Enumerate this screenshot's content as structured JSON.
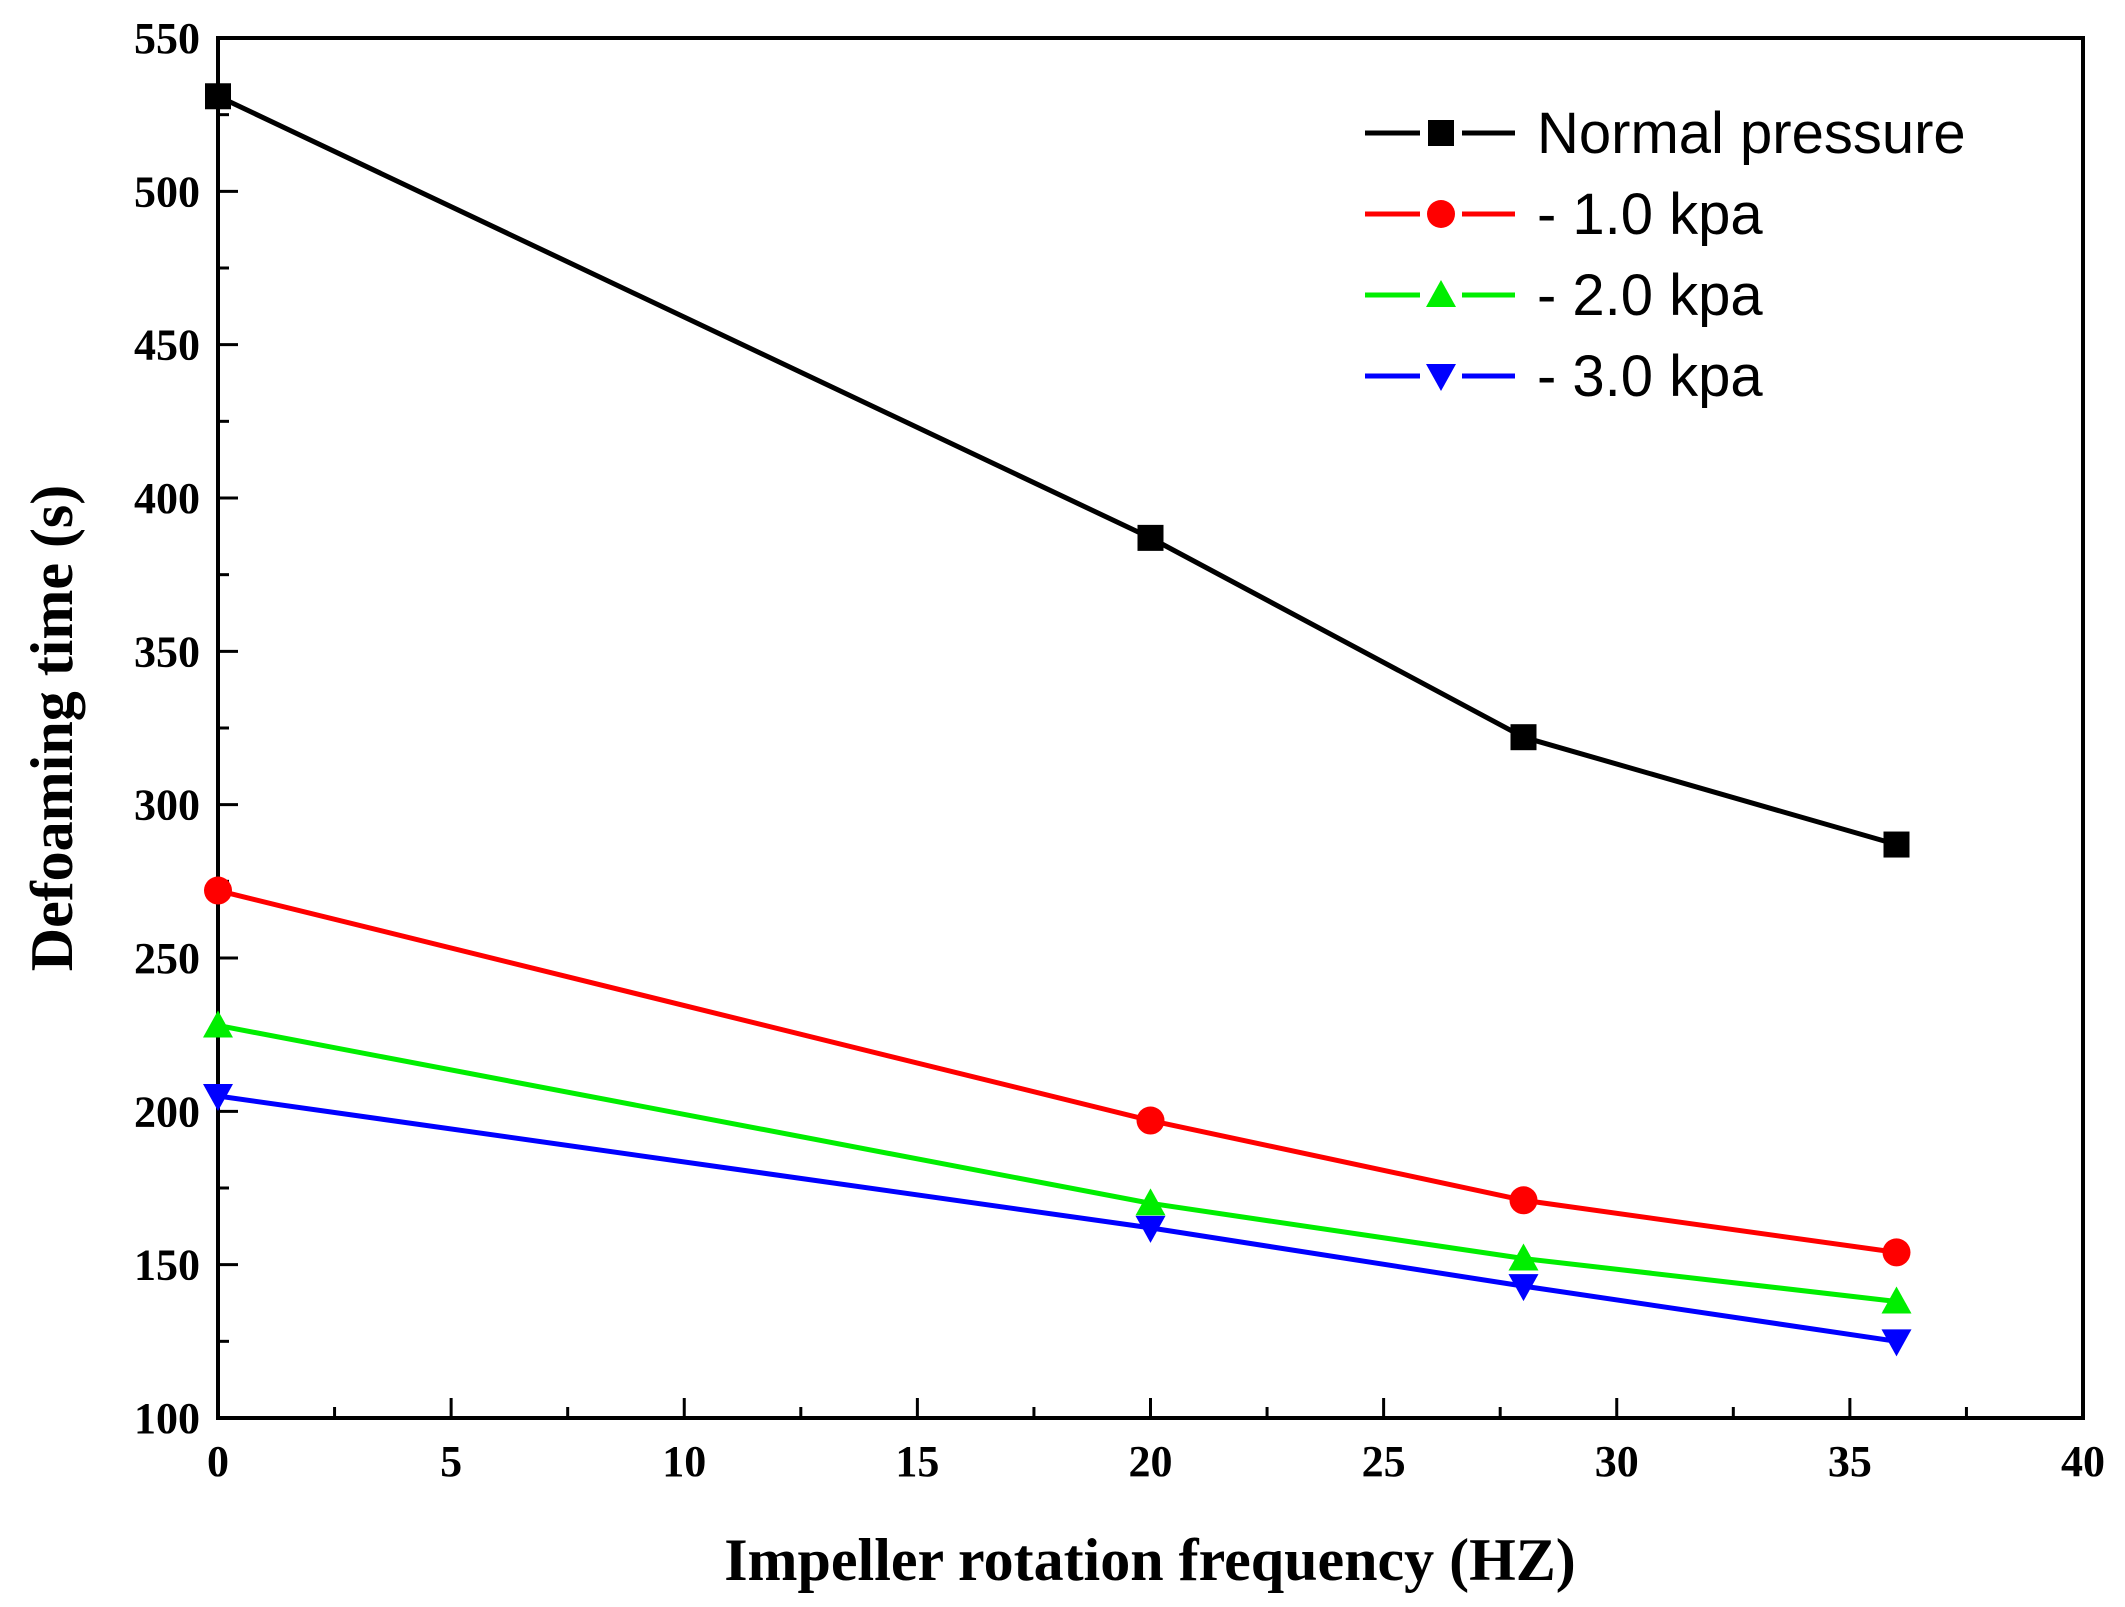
{
  "chart_data": {
    "type": "line",
    "title": "",
    "xlabel": "Impeller rotation frequency (HZ)",
    "ylabel": "Defoaming time (s)",
    "xlim": [
      0,
      40
    ],
    "ylim": [
      100,
      550
    ],
    "xticks": [
      0,
      5,
      10,
      15,
      20,
      25,
      30,
      35,
      40
    ],
    "yticks": [
      100,
      150,
      200,
      250,
      300,
      350,
      400,
      450,
      500,
      550
    ],
    "x": [
      0,
      20,
      28,
      36
    ],
    "series": [
      {
        "name": "Normal pressure",
        "color": "#000000",
        "marker": "square",
        "values": [
          531,
          387,
          322,
          287
        ]
      },
      {
        "name": "- 1.0 kpa",
        "color": "#ff0000",
        "marker": "circle",
        "values": [
          272,
          197,
          171,
          154
        ]
      },
      {
        "name": "- 2.0 kpa",
        "color": "#00ee00",
        "marker": "triangle-up",
        "values": [
          228,
          170,
          152,
          138
        ]
      },
      {
        "name": "- 3.0 kpa",
        "color": "#0000ff",
        "marker": "triangle-down",
        "values": [
          205,
          162,
          143,
          125
        ]
      }
    ],
    "legend_position": "top-right",
    "grid": false
  }
}
